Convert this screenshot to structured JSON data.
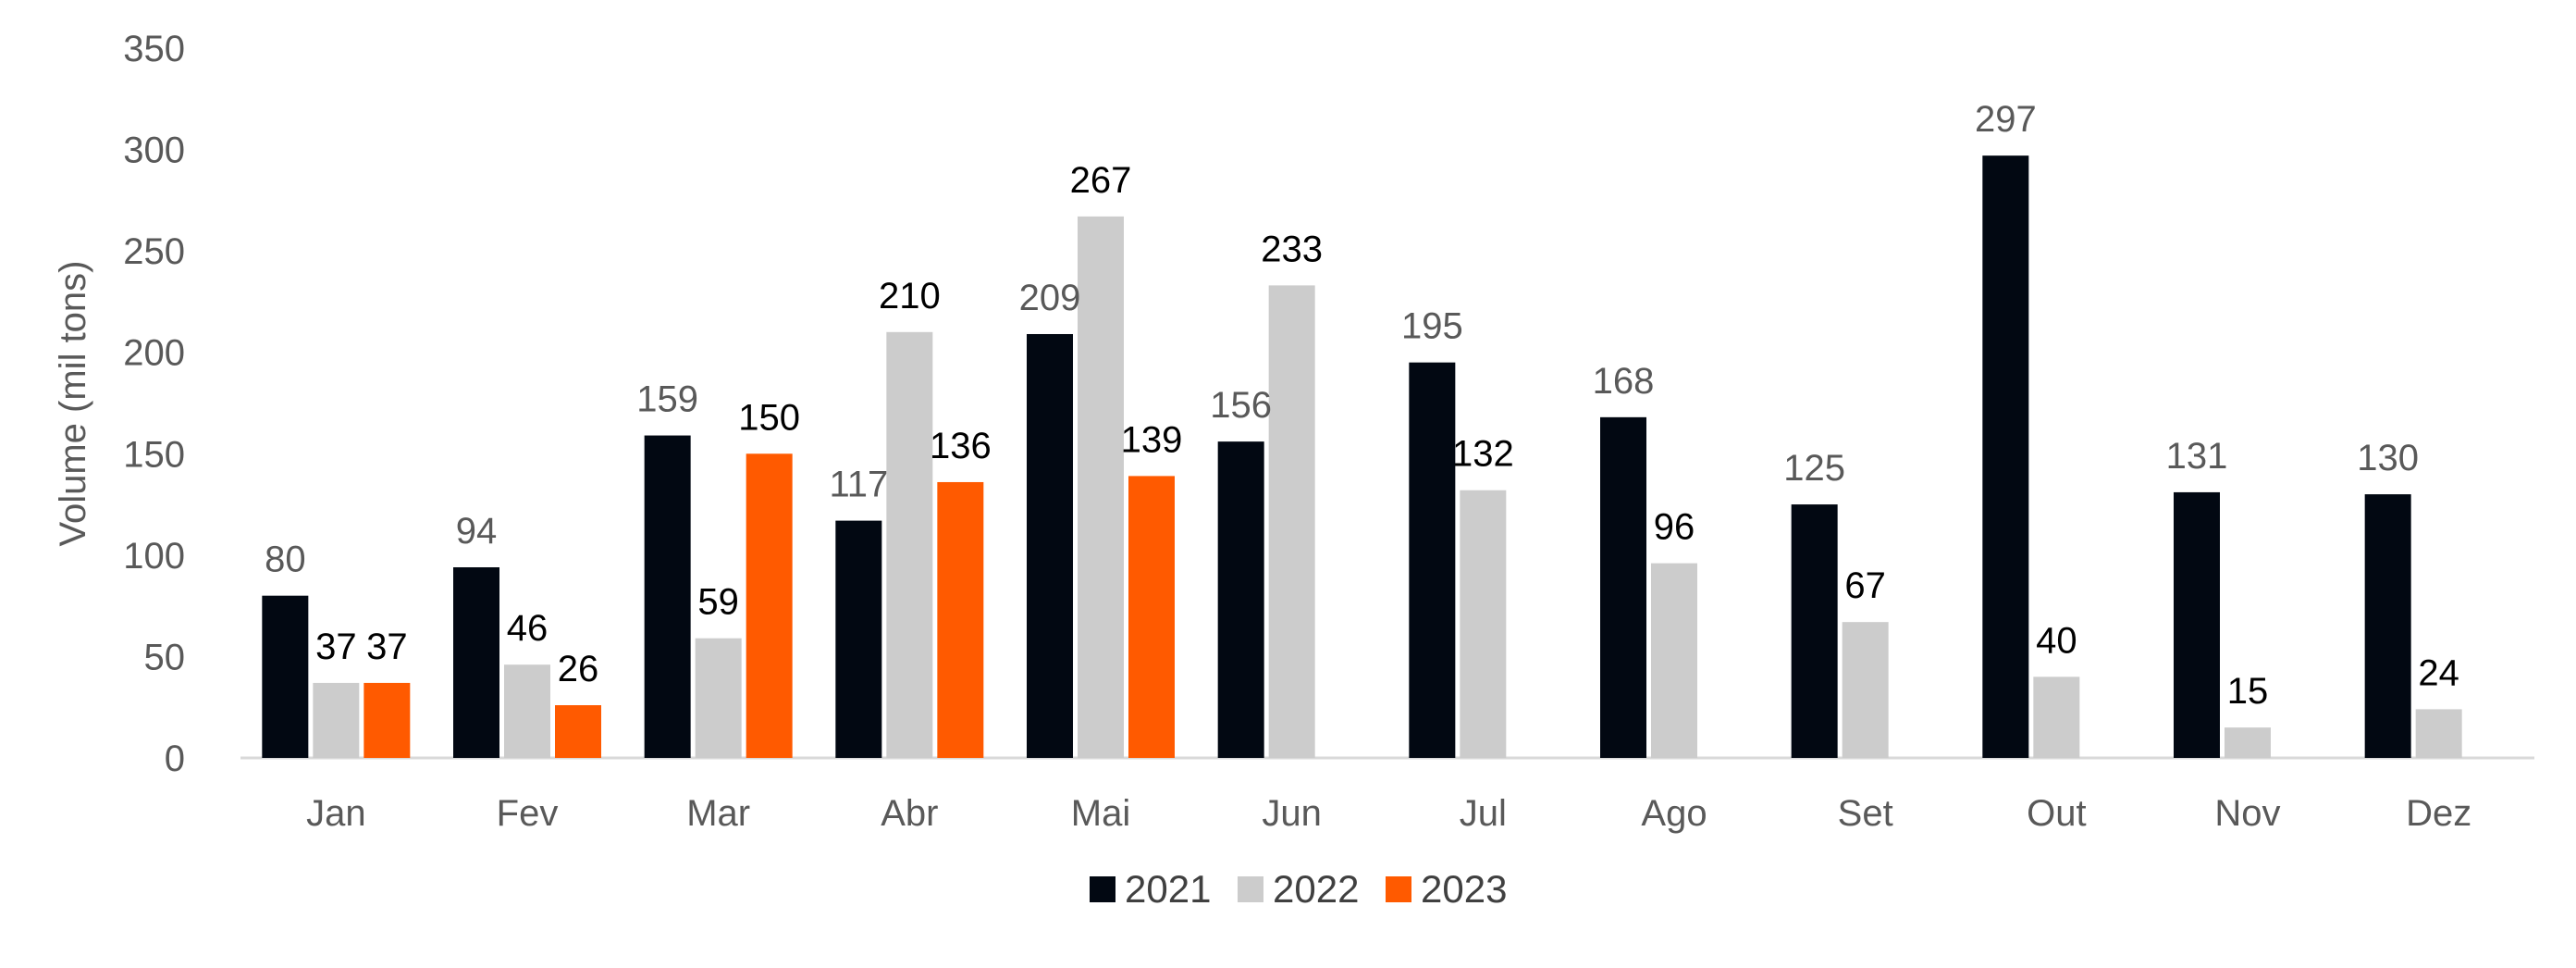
{
  "chart_data": {
    "type": "bar",
    "title": "",
    "xlabel": "",
    "ylabel": "Volume (mil tons)",
    "ylim": [
      0,
      350
    ],
    "yticks": [
      0,
      50,
      100,
      150,
      200,
      250,
      300,
      350
    ],
    "grid": false,
    "legend_position": "bottom",
    "categories": [
      "Jan",
      "Fev",
      "Mar",
      "Abr",
      "Mai",
      "Jun",
      "Jul",
      "Ago",
      "Set",
      "Out",
      "Nov",
      "Dez"
    ],
    "series": [
      {
        "name": "2021",
        "color": "#020812",
        "label_color": "#595959",
        "values": [
          80,
          94,
          159,
          117,
          209,
          156,
          195,
          168,
          125,
          297,
          131,
          130
        ]
      },
      {
        "name": "2022",
        "color": "#cccccc",
        "label_color": "#000000",
        "values": [
          37,
          46,
          59,
          210,
          267,
          233,
          132,
          96,
          67,
          40,
          15,
          24
        ]
      },
      {
        "name": "2023",
        "color": "#ff5a00",
        "label_color": "#000000",
        "values": [
          37,
          26,
          150,
          136,
          139,
          null,
          null,
          null,
          null,
          null,
          null,
          null
        ]
      }
    ]
  }
}
